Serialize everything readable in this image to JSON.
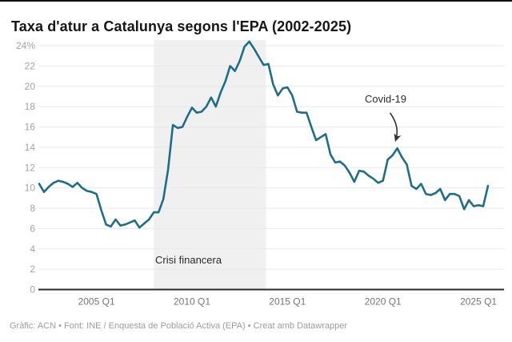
{
  "header": {
    "title": "Taxa d'atur a Catalunya segons l'EPA (2002-2025)"
  },
  "footer": {
    "text": "Gràfic: ACN • Font: INE / Enquesta de Població Activa (EPA) • Creat amb Datawrapper"
  },
  "chart_data": {
    "type": "line",
    "title": "Taxa d'atur a Catalunya segons l'EPA (2002-2025)",
    "unit": "%",
    "ylim": [
      0,
      24
    ],
    "grid": true,
    "legend_position": "none",
    "y_ticks": [
      {
        "value": 0,
        "label": "0"
      },
      {
        "value": 2,
        "label": "2"
      },
      {
        "value": 4,
        "label": "4"
      },
      {
        "value": 6,
        "label": "6"
      },
      {
        "value": 8,
        "label": "8"
      },
      {
        "value": 10,
        "label": "10"
      },
      {
        "value": 12,
        "label": "12"
      },
      {
        "value": 14,
        "label": "14"
      },
      {
        "value": 16,
        "label": "16"
      },
      {
        "value": 18,
        "label": "18"
      },
      {
        "value": 20,
        "label": "20"
      },
      {
        "value": 22,
        "label": "22"
      },
      {
        "value": 24,
        "label": "24%"
      }
    ],
    "x_tick_labels": [
      "2005 Q1",
      "2010 Q1",
      "2015 Q1",
      "2020 Q1",
      "2025 Q1"
    ],
    "series": [
      {
        "name": "Taxa d'atur (%)",
        "quarters": [
          "2002 Q1",
          "2002 Q2",
          "2002 Q3",
          "2002 Q4",
          "2003 Q1",
          "2003 Q2",
          "2003 Q3",
          "2003 Q4",
          "2004 Q1",
          "2004 Q2",
          "2004 Q3",
          "2004 Q4",
          "2005 Q1",
          "2005 Q2",
          "2005 Q3",
          "2005 Q4",
          "2006 Q1",
          "2006 Q2",
          "2006 Q3",
          "2006 Q4",
          "2007 Q1",
          "2007 Q2",
          "2007 Q3",
          "2007 Q4",
          "2008 Q1",
          "2008 Q2",
          "2008 Q3",
          "2008 Q4",
          "2009 Q1",
          "2009 Q2",
          "2009 Q3",
          "2009 Q4",
          "2010 Q1",
          "2010 Q2",
          "2010 Q3",
          "2010 Q4",
          "2011 Q1",
          "2011 Q2",
          "2011 Q3",
          "2011 Q4",
          "2012 Q1",
          "2012 Q2",
          "2012 Q3",
          "2012 Q4",
          "2013 Q1",
          "2013 Q2",
          "2013 Q3",
          "2013 Q4",
          "2014 Q1",
          "2014 Q2",
          "2014 Q3",
          "2014 Q4",
          "2015 Q1",
          "2015 Q2",
          "2015 Q3",
          "2015 Q4",
          "2016 Q1",
          "2016 Q2",
          "2016 Q3",
          "2016 Q4",
          "2017 Q1",
          "2017 Q2",
          "2017 Q3",
          "2017 Q4",
          "2018 Q1",
          "2018 Q2",
          "2018 Q3",
          "2018 Q4",
          "2019 Q1",
          "2019 Q2",
          "2019 Q3",
          "2019 Q4",
          "2020 Q1",
          "2020 Q2",
          "2020 Q3",
          "2020 Q4",
          "2021 Q1",
          "2021 Q2",
          "2021 Q3",
          "2021 Q4",
          "2022 Q1",
          "2022 Q2",
          "2022 Q3",
          "2022 Q4",
          "2023 Q1",
          "2023 Q2",
          "2023 Q3",
          "2023 Q4",
          "2024 Q1",
          "2024 Q2",
          "2024 Q3",
          "2024 Q4",
          "2025 Q1",
          "2025 Q2",
          "2025 Q3"
        ],
        "values": [
          10.4,
          9.6,
          10.1,
          10.5,
          10.7,
          10.6,
          10.4,
          10.1,
          10.5,
          10.0,
          9.7,
          9.6,
          9.4,
          7.8,
          6.4,
          6.2,
          6.9,
          6.3,
          6.4,
          6.6,
          6.8,
          6.1,
          6.5,
          6.9,
          7.6,
          7.6,
          8.9,
          11.8,
          16.2,
          15.9,
          16.0,
          17.0,
          17.9,
          17.4,
          17.5,
          18.0,
          18.9,
          18.0,
          19.4,
          20.5,
          22.0,
          21.5,
          22.5,
          23.9,
          24.4,
          23.7,
          22.9,
          22.1,
          22.2,
          20.2,
          19.1,
          19.8,
          19.9,
          19.1,
          17.5,
          17.4,
          17.4,
          16.0,
          14.7,
          15.0,
          15.3,
          13.3,
          12.5,
          12.6,
          12.2,
          11.5,
          10.6,
          11.7,
          11.6,
          11.2,
          10.9,
          10.5,
          10.7,
          12.8,
          13.2,
          13.9,
          13.0,
          12.3,
          10.2,
          9.9,
          10.4,
          9.4,
          9.3,
          9.5,
          9.9,
          8.8,
          9.4,
          9.4,
          9.2,
          7.9,
          8.8,
          8.2,
          8.3,
          8.2,
          10.2
        ]
      }
    ],
    "annotations": {
      "band": {
        "label": "Crisi financera",
        "from": "2008 Q1",
        "to": "2013 Q4"
      },
      "arrow_label": {
        "text": "Covid-19",
        "points_to": "2020 Q4",
        "value_at_point": 13.9
      }
    },
    "colors": {
      "line": "#1d6e8c",
      "band": "#f0f0f0",
      "grid": "#e8e8e8",
      "axis": "#2b2b2b",
      "y_tick_labels": "#a3a3a3",
      "x_tick_labels": "#757575",
      "annotation_text": "#2c2c2c",
      "arrow": "#333333"
    }
  }
}
